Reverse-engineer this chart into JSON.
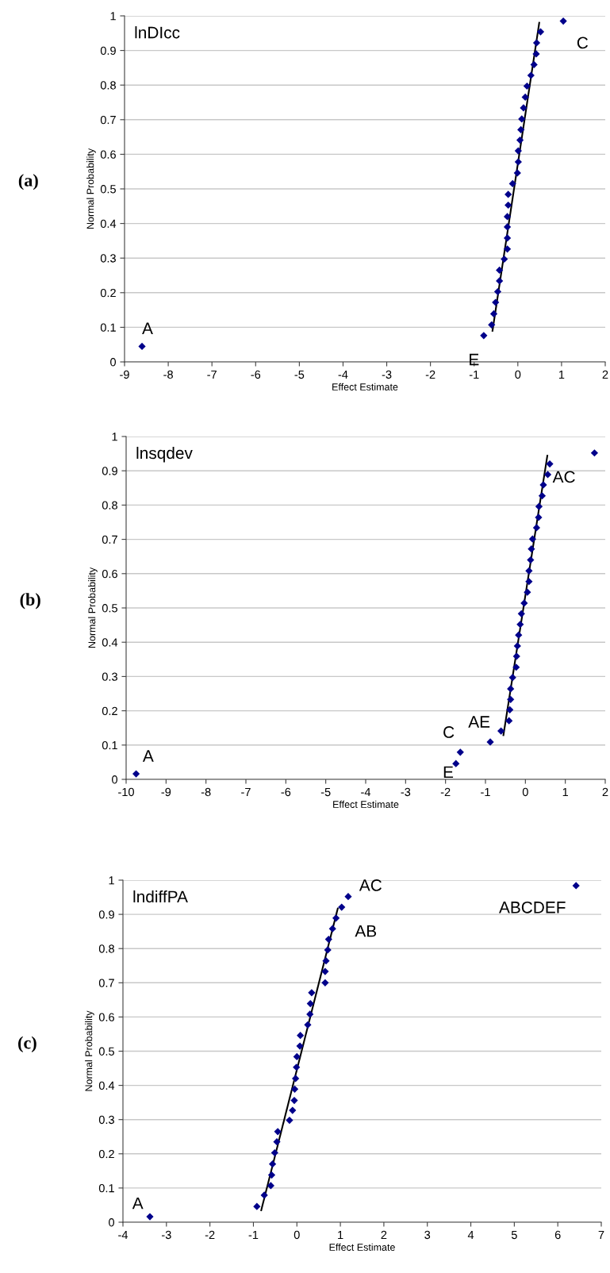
{
  "chart_data": [
    {
      "type": "scatter",
      "title": "lnDIcc",
      "xlabel": "Effect Estimate",
      "ylabel": "Normal Probability",
      "annotations": [
        "(a)",
        {
          "text": "A",
          "x": -8.6,
          "y": 0.045
        },
        {
          "text": "E",
          "x": -0.78,
          "y": 0.076
        },
        {
          "text": "C",
          "x": 1.04,
          "y": 0.985
        }
      ],
      "xlim": [
        -9,
        2
      ],
      "xticks": [
        -9,
        -8,
        -7,
        -6,
        -5,
        -4,
        -3,
        -2,
        -1,
        0,
        1,
        2
      ],
      "ylim": [
        0,
        1
      ],
      "yticks": [
        0,
        0.1,
        0.2,
        0.3,
        0.4,
        0.5,
        0.6,
        0.7,
        0.8,
        0.9,
        1
      ],
      "grid": "y",
      "series": [
        {
          "marker": "diamond",
          "color": "#00008b",
          "x": [
            -8.6,
            -0.78,
            -0.6,
            -0.55,
            -0.51,
            -0.46,
            -0.42,
            -0.42,
            -0.31,
            -0.24,
            -0.24,
            -0.24,
            -0.24,
            -0.22,
            -0.22,
            -0.12,
            -0.01,
            0.01,
            0.01,
            0.05,
            0.07,
            0.09,
            0.13,
            0.17,
            0.21,
            0.3,
            0.37,
            0.42,
            0.43,
            0.52,
            1.04
          ],
          "values": [
            0.045,
            0.076,
            0.107,
            0.139,
            0.172,
            0.203,
            0.234,
            0.265,
            0.297,
            0.326,
            0.358,
            0.39,
            0.42,
            0.453,
            0.484,
            0.515,
            0.546,
            0.578,
            0.61,
            0.641,
            0.671,
            0.702,
            0.734,
            0.765,
            0.797,
            0.828,
            0.859,
            0.89,
            0.922,
            0.954,
            0.985
          ]
        },
        {
          "type": "line",
          "color": "#000000",
          "x": [
            -0.58,
            0.49
          ],
          "values": [
            0.09,
            0.98
          ]
        }
      ]
    },
    {
      "type": "scatter",
      "title": "lnsqdev",
      "xlabel": "Effect Estimate",
      "ylabel": "Normal Probability",
      "annotations": [
        "(b)",
        {
          "text": "A",
          "x": -9.75,
          "y": 0.016
        },
        {
          "text": "E",
          "x": -1.74,
          "y": 0.046
        },
        {
          "text": "C",
          "x": -1.63,
          "y": 0.079
        },
        {
          "text": "AE",
          "x": -0.88,
          "y": 0.109
        },
        {
          "text": "AC",
          "x": 1.73,
          "y": 0.952
        }
      ],
      "xlim": [
        -10,
        2
      ],
      "xticks": [
        -10,
        -9,
        -8,
        -7,
        -6,
        -5,
        -4,
        -3,
        -2,
        -1,
        0,
        1,
        2
      ],
      "ylim": [
        0,
        1
      ],
      "yticks": [
        0,
        0.1,
        0.2,
        0.3,
        0.4,
        0.5,
        0.6,
        0.7,
        0.8,
        0.9,
        1
      ],
      "grid": "y",
      "series": [
        {
          "marker": "diamond",
          "color": "#00008b",
          "x": [
            -9.75,
            -1.74,
            -1.63,
            -0.88,
            -0.61,
            -0.41,
            -0.39,
            -0.37,
            -0.37,
            -0.32,
            -0.23,
            -0.22,
            -0.2,
            -0.17,
            -0.13,
            -0.1,
            -0.03,
            0.05,
            0.09,
            0.09,
            0.13,
            0.15,
            0.18,
            0.28,
            0.33,
            0.34,
            0.42,
            0.45,
            0.56,
            0.61,
            1.73
          ],
          "values": [
            0.016,
            0.046,
            0.079,
            0.109,
            0.141,
            0.171,
            0.203,
            0.233,
            0.264,
            0.297,
            0.327,
            0.359,
            0.389,
            0.421,
            0.452,
            0.483,
            0.514,
            0.546,
            0.577,
            0.608,
            0.64,
            0.672,
            0.701,
            0.734,
            0.764,
            0.796,
            0.827,
            0.859,
            0.889,
            0.92,
            0.952
          ]
        },
        {
          "type": "line",
          "color": "#000000",
          "x": [
            -0.55,
            0.55
          ],
          "values": [
            0.129,
            0.944
          ]
        }
      ]
    },
    {
      "type": "scatter",
      "title": "lndiffPA",
      "xlabel": "Effect Estimate",
      "ylabel": "Normal Probability",
      "annotations": [
        "(c)",
        {
          "text": "A",
          "x": -3.38,
          "y": 0.016
        },
        {
          "text": "AB",
          "x": 1.03,
          "y": 0.921
        },
        {
          "text": "AC",
          "x": 1.18,
          "y": 0.952
        },
        {
          "text": "ABCDEF",
          "x": 6.42,
          "y": 0.984
        }
      ],
      "xlim": [
        -4,
        7
      ],
      "xticks": [
        -4,
        -3,
        -2,
        -1,
        0,
        1,
        2,
        3,
        4,
        5,
        6,
        7
      ],
      "ylim": [
        0,
        1
      ],
      "yticks": [
        0,
        0.1,
        0.2,
        0.3,
        0.4,
        0.5,
        0.6,
        0.7,
        0.8,
        0.9,
        1
      ],
      "grid": "y",
      "series": [
        {
          "marker": "diamond",
          "color": "#00008b",
          "x": [
            -3.38,
            -0.92,
            -0.75,
            -0.6,
            -0.58,
            -0.56,
            -0.51,
            -0.46,
            -0.44,
            -0.17,
            -0.1,
            -0.06,
            -0.05,
            -0.03,
            -0.01,
            0.0,
            0.07,
            0.08,
            0.25,
            0.3,
            0.31,
            0.34,
            0.65,
            0.65,
            0.67,
            0.71,
            0.73,
            0.82,
            0.9,
            1.03,
            1.18,
            6.42
          ],
          "values": [
            0.016,
            0.046,
            0.079,
            0.107,
            0.138,
            0.17,
            0.203,
            0.235,
            0.265,
            0.298,
            0.327,
            0.356,
            0.389,
            0.42,
            0.453,
            0.484,
            0.515,
            0.546,
            0.577,
            0.608,
            0.639,
            0.671,
            0.7,
            0.733,
            0.764,
            0.796,
            0.827,
            0.858,
            0.889,
            0.921,
            0.952,
            0.984
          ]
        },
        {
          "type": "line",
          "color": "#000000",
          "x": [
            -0.82,
            0.94
          ],
          "values": [
            0.035,
            0.917
          ]
        }
      ]
    }
  ]
}
